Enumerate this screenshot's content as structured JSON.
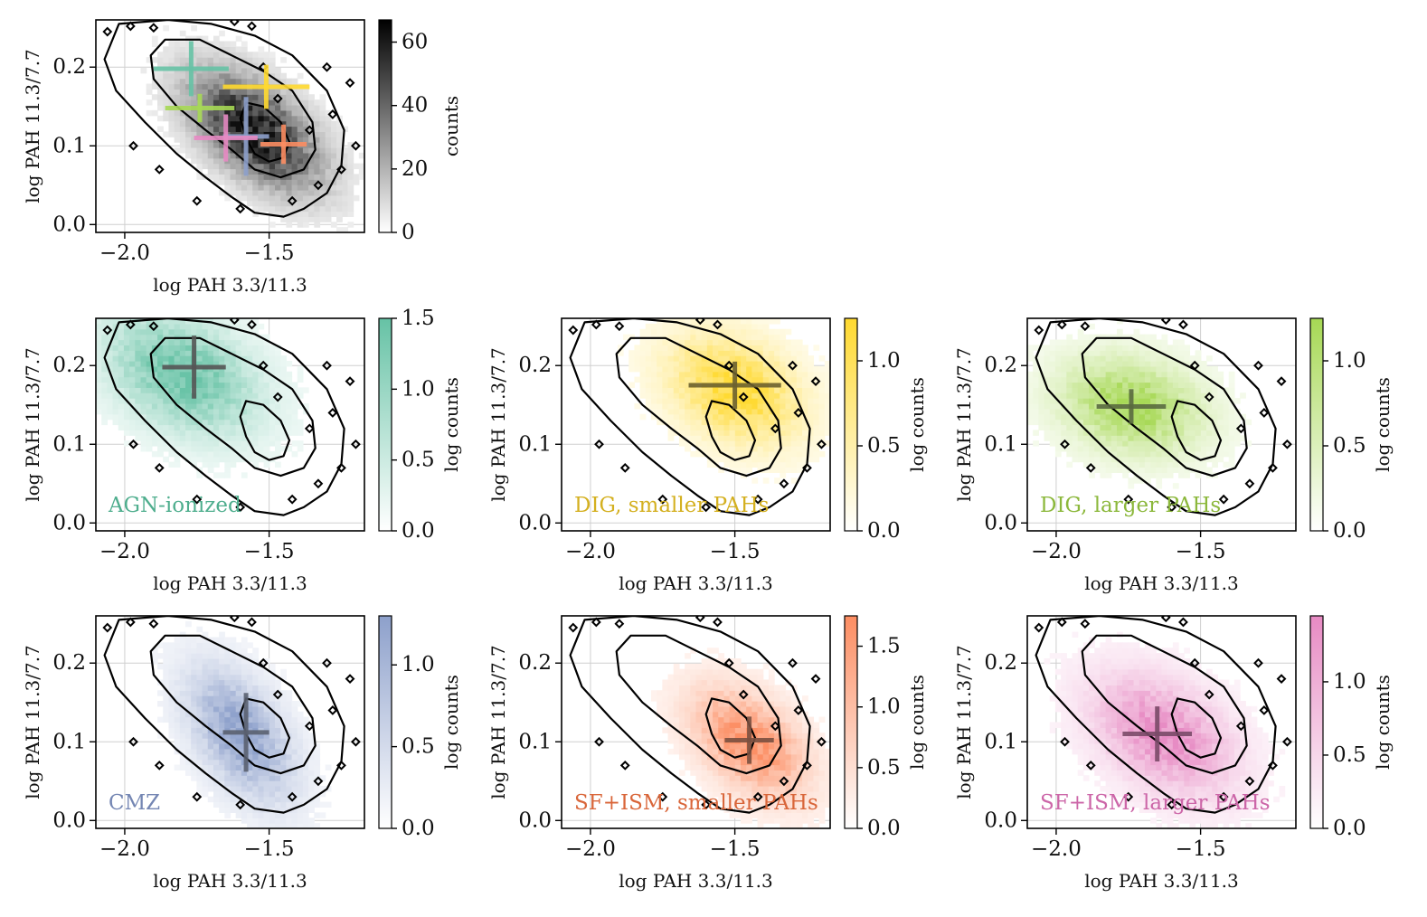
{
  "chart_data": {
    "type": "heatmap",
    "title": "",
    "x_range": [
      -2.1,
      -1.17
    ],
    "y_range": [
      -0.01,
      0.26
    ],
    "x_ticks": [
      {
        "value": -2.0,
        "label": "−2.0"
      },
      {
        "value": -1.5,
        "label": "−1.5"
      }
    ],
    "y_ticks": [
      {
        "value": 0.0,
        "label": "0.0"
      },
      {
        "value": 0.1,
        "label": "0.1"
      },
      {
        "value": 0.2,
        "label": "0.2"
      }
    ],
    "xlabel": "log PAH 3.3/11.3",
    "ylabel": "log PAH 11.3/7.7",
    "panels": [
      {
        "id": "all",
        "label": "",
        "colorbar_label": "counts",
        "cmap": "gray",
        "color": "#111111",
        "cbar_range": [
          0,
          67
        ],
        "cbar_ticks": [
          {
            "value": 0,
            "label": "0"
          },
          {
            "value": 20,
            "label": "20"
          },
          {
            "value": 40,
            "label": "40"
          },
          {
            "value": 60,
            "label": "60"
          }
        ],
        "density": {
          "center": [
            -1.55,
            0.12
          ],
          "sx": 0.15,
          "sy": 0.05,
          "rho": -0.55
        },
        "crosses": [
          {
            "region": "AGN-ionized",
            "color": "#66c2a5",
            "x": -1.77,
            "y": 0.198,
            "xerr": 0.13,
            "yerr": 0.035
          },
          {
            "region": "DIG, smaller PAHs",
            "color": "#ffd92f",
            "x": -1.51,
            "y": 0.175,
            "xerr": 0.15,
            "yerr": 0.028
          },
          {
            "region": "DIG, larger PAHs",
            "color": "#a6d854",
            "x": -1.74,
            "y": 0.148,
            "xerr": 0.12,
            "yerr": 0.018
          },
          {
            "region": "CMZ",
            "color": "#8da0cb",
            "x": -1.58,
            "y": 0.112,
            "xerr": 0.08,
            "yerr": 0.05
          },
          {
            "region": "SF+ISM, smaller PAHs",
            "color": "#fc8d62",
            "x": -1.45,
            "y": 0.102,
            "xerr": 0.08,
            "yerr": 0.025
          },
          {
            "region": "SF+ISM, larger PAHs",
            "color": "#e78ac3",
            "x": -1.65,
            "y": 0.11,
            "xerr": 0.11,
            "yerr": 0.03
          }
        ]
      },
      {
        "id": "agn",
        "label": "AGN-ionized",
        "colorbar_label": "log counts",
        "cmap": "sequential",
        "color": "#66c2a5",
        "cbar_range": [
          0,
          1.5
        ],
        "cbar_ticks": [
          {
            "value": 0.0,
            "label": "0.0"
          },
          {
            "value": 0.5,
            "label": "0.5"
          },
          {
            "value": 1.0,
            "label": "1.0"
          },
          {
            "value": 1.5,
            "label": "1.5"
          }
        ],
        "density": {
          "center": [
            -1.8,
            0.19
          ],
          "sx": 0.17,
          "sy": 0.05,
          "rho": -0.35
        },
        "crosses": [
          {
            "color": "#555555",
            "x": -1.76,
            "y": 0.198,
            "xerr": 0.11,
            "yerr": 0.04
          }
        ]
      },
      {
        "id": "dig_small",
        "label": "DIG, smaller PAHs",
        "colorbar_label": "log counts",
        "cmap": "sequential",
        "color": "#ffd92f",
        "cbar_range": [
          0,
          1.25
        ],
        "cbar_ticks": [
          {
            "value": 0.0,
            "label": "0.0"
          },
          {
            "value": 0.5,
            "label": "0.5"
          },
          {
            "value": 1.0,
            "label": "1.0"
          }
        ],
        "density": {
          "center": [
            -1.5,
            0.17
          ],
          "sx": 0.15,
          "sy": 0.045,
          "rho": -0.3
        },
        "crosses": [
          {
            "color": "#6b6130",
            "x": -1.5,
            "y": 0.175,
            "xerr": 0.16,
            "yerr": 0.03
          }
        ]
      },
      {
        "id": "dig_large",
        "label": "DIG, larger PAHs",
        "colorbar_label": "log counts",
        "cmap": "sequential",
        "color": "#a6d854",
        "cbar_range": [
          0,
          1.25
        ],
        "cbar_ticks": [
          {
            "value": 0.0,
            "label": "0.0"
          },
          {
            "value": 0.5,
            "label": "0.5"
          },
          {
            "value": 1.0,
            "label": "1.0"
          }
        ],
        "density": {
          "center": [
            -1.74,
            0.15
          ],
          "sx": 0.16,
          "sy": 0.04,
          "rho": -0.2
        },
        "crosses": [
          {
            "color": "#5a6a40",
            "x": -1.74,
            "y": 0.148,
            "xerr": 0.12,
            "yerr": 0.022
          }
        ]
      },
      {
        "id": "cmz",
        "label": "CMZ",
        "colorbar_label": "log counts",
        "cmap": "sequential",
        "color": "#8da0cb",
        "cbar_range": [
          0,
          1.3
        ],
        "cbar_ticks": [
          {
            "value": 0.0,
            "label": "0.0"
          },
          {
            "value": 0.5,
            "label": "0.5"
          },
          {
            "value": 1.0,
            "label": "1.0"
          }
        ],
        "density": {
          "center": [
            -1.6,
            0.11
          ],
          "sx": 0.12,
          "sy": 0.055,
          "rho": -0.5
        },
        "crosses": [
          {
            "color": "#5a6070",
            "x": -1.58,
            "y": 0.112,
            "xerr": 0.08,
            "yerr": 0.05
          }
        ]
      },
      {
        "id": "sf_small",
        "label": "SF+ISM, smaller PAHs",
        "colorbar_label": "log counts",
        "cmap": "sequential",
        "color": "#fc8d62",
        "cbar_range": [
          0,
          1.75
        ],
        "cbar_ticks": [
          {
            "value": 0.0,
            "label": "0.0"
          },
          {
            "value": 0.5,
            "label": "0.5"
          },
          {
            "value": 1.0,
            "label": "1.0"
          },
          {
            "value": 1.5,
            "label": "1.5"
          }
        ],
        "density": {
          "center": [
            -1.45,
            0.1
          ],
          "sx": 0.13,
          "sy": 0.045,
          "rho": -0.45
        },
        "crosses": [
          {
            "color": "#7a5040",
            "x": -1.45,
            "y": 0.102,
            "xerr": 0.085,
            "yerr": 0.03
          }
        ]
      },
      {
        "id": "sf_large",
        "label": "SF+ISM, larger PAHs",
        "colorbar_label": "log counts",
        "cmap": "sequential",
        "color": "#e78ac3",
        "cbar_range": [
          0,
          1.45
        ],
        "cbar_ticks": [
          {
            "value": 0.0,
            "label": "0.0"
          },
          {
            "value": 0.5,
            "label": "0.5"
          },
          {
            "value": 1.0,
            "label": "1.0"
          }
        ],
        "density": {
          "center": [
            -1.63,
            0.11
          ],
          "sx": 0.16,
          "sy": 0.05,
          "rho": -0.4
        },
        "crosses": [
          {
            "color": "#7a4a68",
            "x": -1.65,
            "y": 0.11,
            "xerr": 0.12,
            "yerr": 0.035
          }
        ]
      }
    ]
  }
}
